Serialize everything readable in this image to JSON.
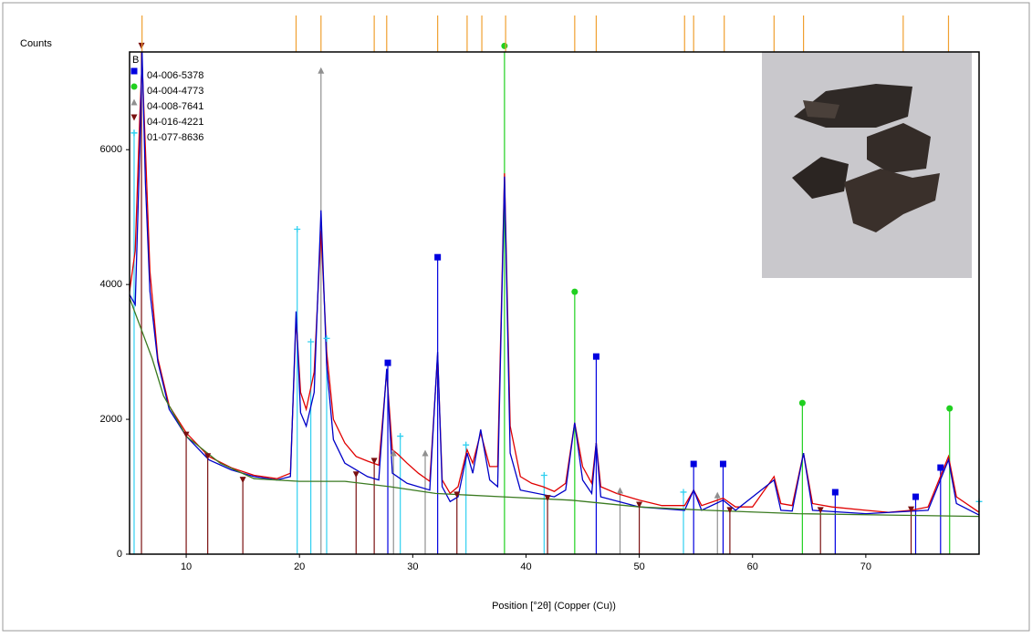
{
  "chart_data": {
    "type": "line",
    "y_label": "Counts",
    "x_label": "Position [°2θ] (Copper (Cu))",
    "legend_label": "B",
    "xlim": [
      5,
      80
    ],
    "ylim": [
      0,
      7450
    ],
    "xticks": [
      10,
      20,
      30,
      40,
      50,
      60,
      70
    ],
    "yticks": [
      0,
      2000,
      4000,
      6000
    ],
    "peak_color": "#f0a030",
    "peak_positions": [
      6.1,
      19.7,
      21.9,
      26.6,
      27.7,
      32.2,
      34.8,
      36.1,
      38.2,
      44.3,
      46.2,
      54.0,
      54.8,
      57.5,
      61.9,
      64.5,
      73.3,
      77.3
    ],
    "profiles": [
      {
        "color": "#e00000",
        "x": [
          5,
          5.5,
          5.9,
          6.1,
          6.4,
          6.8,
          7.5,
          8.5,
          10,
          12,
          14,
          16,
          18,
          19.2,
          19.7,
          20.1,
          20.6,
          21.3,
          21.9,
          22.4,
          23,
          24,
          25,
          26,
          27,
          27.7,
          28.2,
          28.7,
          29.5,
          30.5,
          31.5,
          32.2,
          32.6,
          33.3,
          34,
          34.8,
          35.3,
          36,
          36.8,
          37.5,
          38.1,
          38.6,
          39.5,
          40.5,
          41.5,
          42.5,
          43.5,
          44.3,
          45,
          45.8,
          46.2,
          46.6,
          48,
          50,
          52,
          54,
          54.8,
          55.5,
          57.4,
          58.5,
          60,
          61.9,
          62.5,
          63.5,
          64.5,
          65.3,
          67,
          70,
          72,
          74,
          75.5,
          77.3,
          78,
          80
        ],
        "values": [
          3900,
          4500,
          6500,
          7300,
          6000,
          4200,
          2900,
          2200,
          1800,
          1450,
          1280,
          1170,
          1120,
          1200,
          3500,
          2400,
          2150,
          2700,
          4800,
          3000,
          2000,
          1650,
          1450,
          1380,
          1320,
          2700,
          1550,
          1480,
          1350,
          1200,
          1080,
          2950,
          1100,
          900,
          1000,
          1550,
          1350,
          1800,
          1300,
          1300,
          5650,
          1900,
          1150,
          1050,
          1000,
          930,
          1050,
          1950,
          1300,
          1050,
          1650,
          1000,
          900,
          800,
          720,
          720,
          950,
          720,
          830,
          700,
          700,
          1150,
          750,
          720,
          1500,
          750,
          700,
          650,
          620,
          650,
          700,
          1450,
          850,
          620
        ]
      },
      {
        "color": "#0000c8",
        "x": [
          5,
          5.5,
          5.9,
          6.1,
          6.4,
          6.8,
          7.5,
          8.5,
          10,
          12,
          14,
          16,
          18,
          19.2,
          19.7,
          20.1,
          20.6,
          21.3,
          21.9,
          22.4,
          23,
          24,
          26,
          27,
          27.7,
          28.2,
          29.5,
          31.5,
          32.2,
          32.6,
          33.3,
          34,
          34.8,
          35.3,
          36,
          36.8,
          37.5,
          38.1,
          38.6,
          39.5,
          42.5,
          43.5,
          44.3,
          45,
          45.8,
          46.2,
          46.6,
          50,
          54,
          54.8,
          55.5,
          57.4,
          58.5,
          61.9,
          62.5,
          63.5,
          64.5,
          65.3,
          70,
          75.5,
          77.3,
          78,
          80
        ],
        "values": [
          3850,
          3700,
          6000,
          7450,
          5500,
          3900,
          2850,
          2150,
          1750,
          1400,
          1250,
          1150,
          1100,
          1150,
          3600,
          2100,
          1900,
          2400,
          5100,
          2800,
          1700,
          1350,
          1150,
          1100,
          2750,
          1200,
          1050,
          950,
          3000,
          1000,
          780,
          850,
          1500,
          1200,
          1850,
          1100,
          1000,
          5600,
          1500,
          950,
          850,
          950,
          1950,
          1100,
          900,
          1650,
          850,
          700,
          650,
          950,
          650,
          800,
          650,
          1100,
          650,
          640,
          1500,
          650,
          600,
          650,
          1400,
          750,
          580
        ]
      },
      {
        "color": "#3a7a20",
        "x": [
          5,
          6,
          7,
          8,
          10,
          13,
          16,
          20,
          24,
          28,
          32,
          38,
          44,
          50,
          56,
          64,
          72,
          80
        ],
        "values": [
          3800,
          3350,
          2900,
          2350,
          1750,
          1350,
          1120,
          1080,
          1080,
          1000,
          900,
          850,
          800,
          700,
          650,
          600,
          580,
          560
        ]
      }
    ],
    "reference_patterns": [
      {
        "name": "04-006-5378",
        "color": "#0000e0",
        "marker": "square",
        "x": [
          27.8,
          32.2,
          46.2,
          54.8,
          57.4,
          67.3,
          74.4,
          76.6
        ],
        "values": [
          2838,
          4405,
          2932,
          1338,
          1338,
          919,
          851,
          1284
        ]
      },
      {
        "name": "04-004-4773",
        "color": "#20d020",
        "marker": "circle",
        "x": [
          38.1,
          44.3,
          64.4,
          77.4
        ],
        "values": [
          7540,
          3892,
          2243,
          2162
        ]
      },
      {
        "name": "04-008-7641",
        "color": "#909090",
        "marker": "triangle",
        "x": [
          21.9,
          28.3,
          31.1,
          48.3,
          56.9
        ],
        "values": [
          7176,
          1500,
          1500,
          946,
          878
        ]
      },
      {
        "name": "04-016-4221",
        "color": "#7a1010",
        "marker": "triangle-down",
        "x": [
          6.05,
          10.0,
          11.9,
          15.0,
          25.0,
          26.6,
          33.9,
          41.9,
          50.0,
          58.0,
          66.0,
          74.0
        ],
        "values": [
          7540,
          1770,
          1450,
          1100,
          1180,
          1380,
          880,
          830,
          730,
          650,
          650,
          660
        ]
      },
      {
        "name": "01-077-8636",
        "color": "#30d0f0",
        "marker": "plus",
        "x": [
          5.4,
          19.8,
          21.0,
          22.4,
          28.9,
          34.7,
          41.6,
          53.9,
          80.0
        ],
        "values": [
          6250,
          4820,
          3150,
          3200,
          1750,
          1620,
          1170,
          920,
          780
        ]
      }
    ]
  }
}
